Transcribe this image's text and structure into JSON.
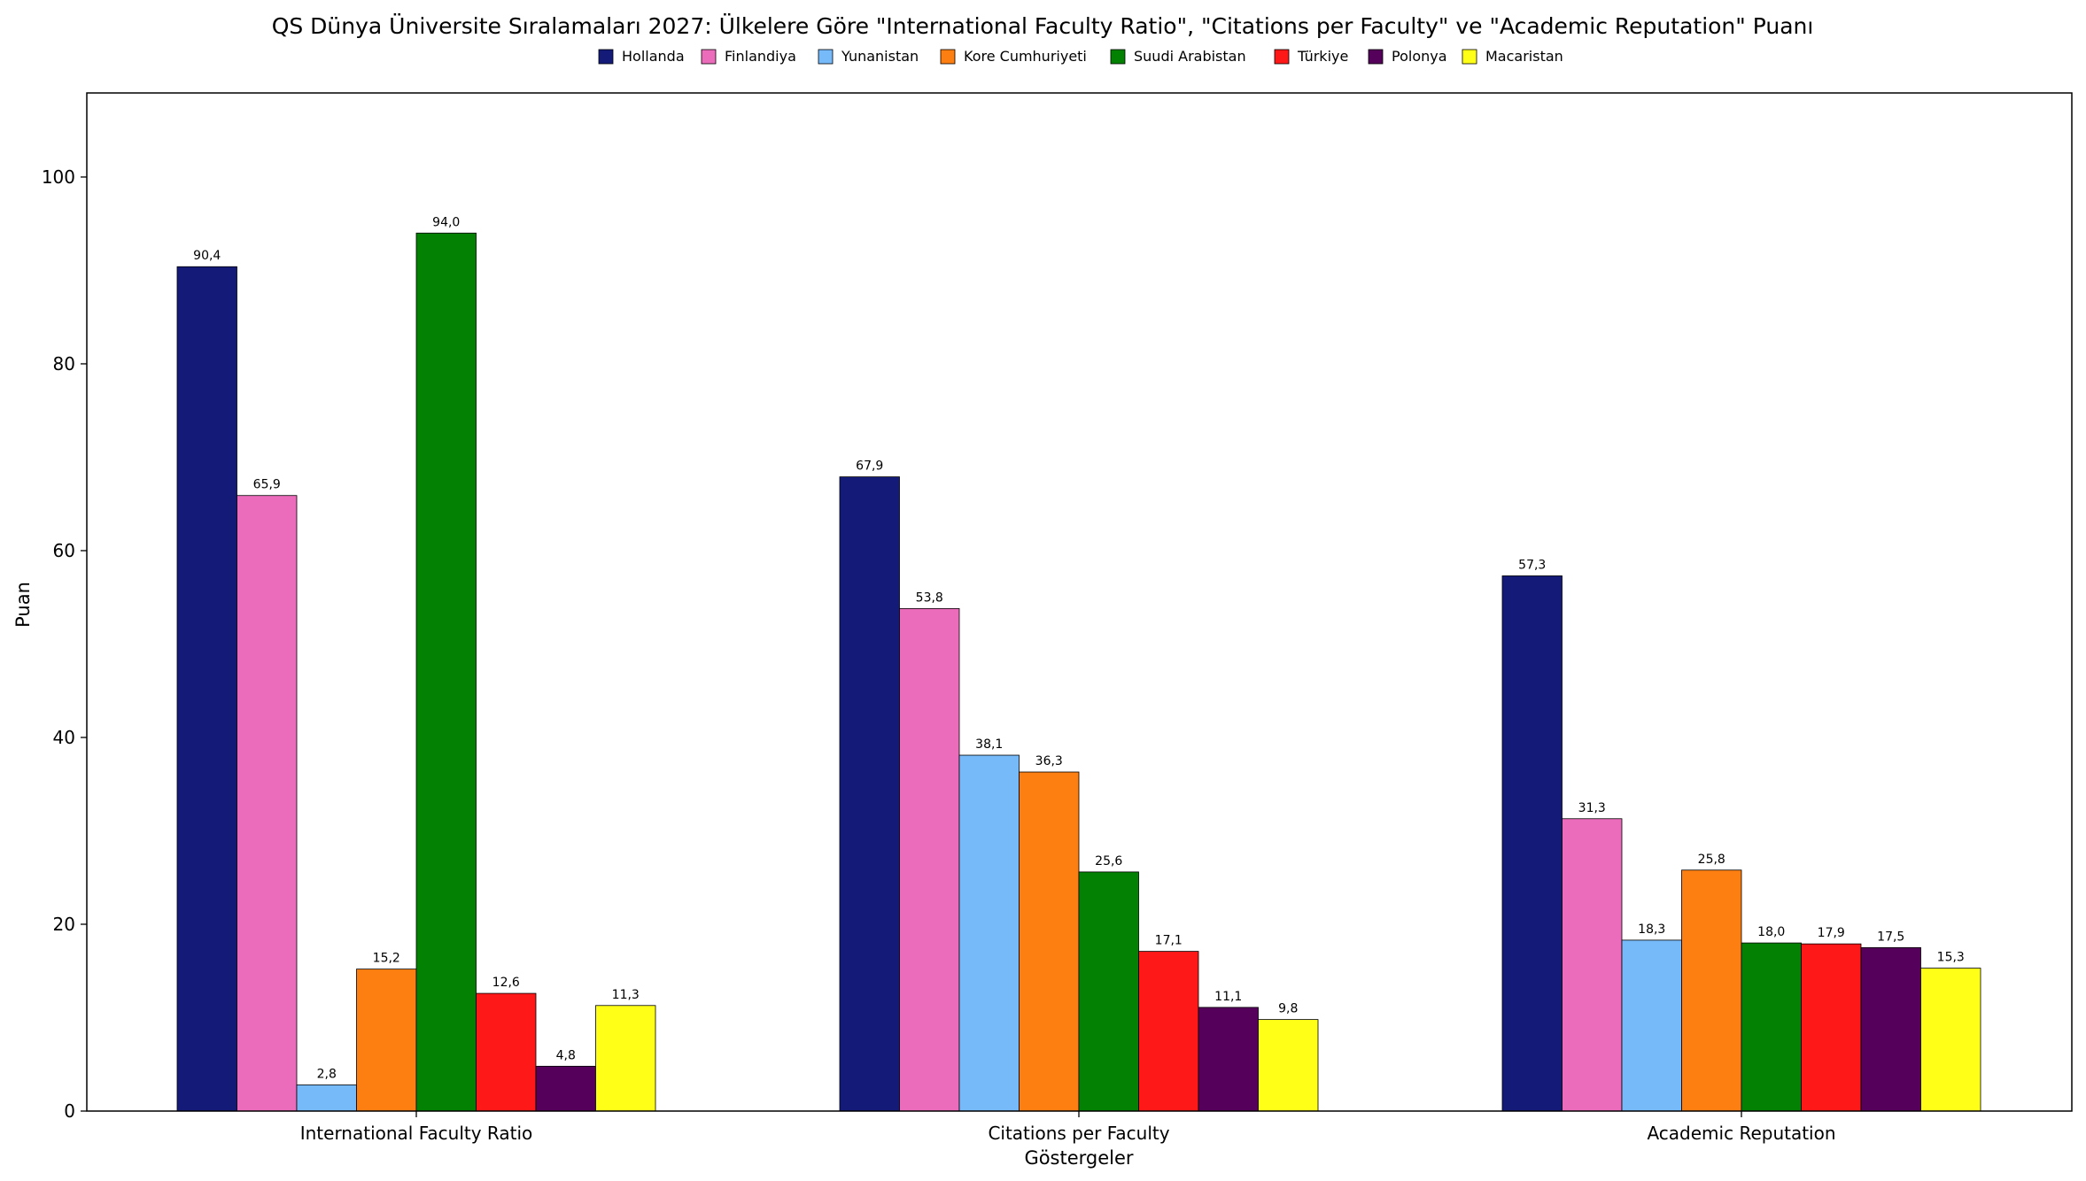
{
  "chart_data": {
    "type": "bar",
    "title": "QS Dünya Üniversite Sıralamaları 2027: Ülkelere Göre \"International Faculty Ratio\", \"Citations per Faculty\" ve \"Academic Reputation\" Puanı",
    "xlabel": "Göstergeler",
    "ylabel": "Puan",
    "ylim": [
      0,
      109
    ],
    "yticks": [
      0,
      20,
      40,
      60,
      80,
      100
    ],
    "grid": false,
    "legend_position": "top-center",
    "categories": [
      "International Faculty Ratio",
      "Citations per Faculty",
      "Academic Reputation"
    ],
    "series": [
      {
        "name": "Hollanda",
        "color": "#131a78",
        "values": [
          90.4,
          67.9,
          57.3
        ],
        "labels": [
          "90,4",
          "67,9",
          "57,3"
        ]
      },
      {
        "name": "Finlandiya",
        "color": "#ec6cbc",
        "values": [
          65.9,
          53.8,
          31.3
        ],
        "labels": [
          "65,9",
          "53,8",
          "31,3"
        ]
      },
      {
        "name": "Yunanistan",
        "color": "#77baf9",
        "values": [
          2.8,
          38.1,
          18.3
        ],
        "labels": [
          "2,8",
          "38,1",
          "18,3"
        ]
      },
      {
        "name": "Kore Cumhuriyeti",
        "color": "#fd7f12",
        "values": [
          15.2,
          36.3,
          25.8
        ],
        "labels": [
          "15,2",
          "36,3",
          "25,8"
        ]
      },
      {
        "name": "Suudi Arabistan",
        "color": "#038103",
        "values": [
          94.0,
          25.6,
          18.0
        ],
        "labels": [
          "94,0",
          "25,6",
          "18,0"
        ]
      },
      {
        "name": "Türkiye",
        "color": "#fe1818",
        "values": [
          12.6,
          17.1,
          17.9
        ],
        "labels": [
          "12,6",
          "17,1",
          "17,9"
        ]
      },
      {
        "name": "Polonya",
        "color": "#55005b",
        "values": [
          4.8,
          11.1,
          17.5
        ],
        "labels": [
          "4,8",
          "11,1",
          "17,5"
        ]
      },
      {
        "name": "Macaristan",
        "color": "#ffff17",
        "values": [
          11.3,
          9.8,
          15.3
        ],
        "labels": [
          "11,3",
          "9,8",
          "15,3"
        ]
      }
    ]
  }
}
